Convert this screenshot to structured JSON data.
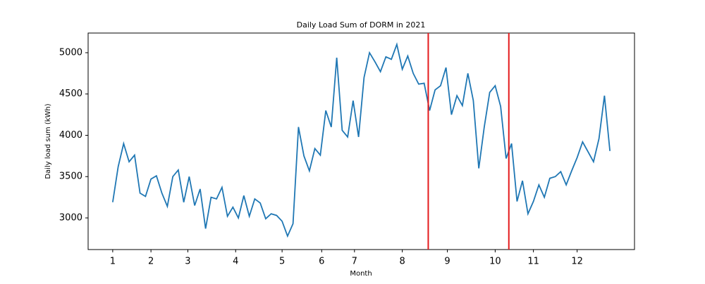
{
  "chart_data": {
    "type": "line",
    "title": "Daily Load Sum of DORM in 2021",
    "xlabel": "Month",
    "ylabel": "Daily load sum (kWh)",
    "x": [
      0,
      4,
      8,
      12,
      16,
      20,
      24,
      28,
      32,
      36,
      40,
      44,
      48,
      52,
      56,
      60,
      64,
      68,
      72,
      76,
      80,
      84,
      88,
      92,
      96,
      100,
      104,
      108,
      112,
      116,
      120,
      124,
      128,
      132,
      136,
      140,
      144,
      148,
      152,
      156,
      160,
      164,
      168,
      172,
      176,
      180,
      184,
      188,
      192,
      196,
      200,
      204,
      208,
      212,
      216,
      220,
      224,
      228,
      232,
      236,
      240,
      244,
      248,
      252,
      256,
      260,
      264,
      268,
      272,
      276,
      280,
      284,
      288,
      292,
      296,
      300,
      304,
      308,
      312,
      316,
      320,
      324,
      328,
      332,
      336,
      340,
      344,
      348,
      352,
      356,
      360,
      364
    ],
    "series": [
      {
        "name": "Daily load sum",
        "color": "#1f77b4",
        "values": [
          3190,
          3620,
          3900,
          3680,
          3760,
          3300,
          3260,
          3470,
          3510,
          3300,
          3140,
          3500,
          3580,
          3190,
          3500,
          3150,
          3350,
          2870,
          3250,
          3230,
          3370,
          3020,
          3130,
          3000,
          3270,
          3020,
          3230,
          3180,
          2990,
          3050,
          3030,
          2960,
          2780,
          2930,
          4100,
          3750,
          3570,
          3840,
          3760,
          4300,
          4100,
          4940,
          4060,
          3980,
          4420,
          3980,
          4700,
          5000,
          4890,
          4770,
          4950,
          4920,
          5100,
          4800,
          4960,
          4750,
          4620,
          4630,
          4300,
          4550,
          4600,
          4820,
          4250,
          4480,
          4360,
          4750,
          4420,
          3600,
          4100,
          4520,
          4600,
          4350,
          3720,
          3900,
          3200,
          3450,
          3050,
          3200,
          3400,
          3250,
          3480,
          3500,
          3560,
          3400,
          3570,
          3730,
          3920,
          3800,
          3680,
          3960,
          4480,
          3810
        ]
      }
    ],
    "vlines": [
      231,
      290
    ],
    "vline_color": "#e41a1c",
    "xlim": [
      -18,
      382
    ],
    "ylim": [
      2617,
      5238
    ],
    "xticks": [
      {
        "value": 0,
        "label": "1"
      },
      {
        "value": 28,
        "label": "2"
      },
      {
        "value": 55,
        "label": "3"
      },
      {
        "value": 90,
        "label": "4"
      },
      {
        "value": 124,
        "label": "5"
      },
      {
        "value": 153,
        "label": "6"
      },
      {
        "value": 177,
        "label": "7"
      },
      {
        "value": 212,
        "label": "8"
      },
      {
        "value": 245,
        "label": "9"
      },
      {
        "value": 280,
        "label": "10"
      },
      {
        "value": 308,
        "label": "11"
      },
      {
        "value": 340,
        "label": "12"
      }
    ],
    "yticks": [
      3000,
      3500,
      4000,
      4500,
      5000
    ]
  }
}
